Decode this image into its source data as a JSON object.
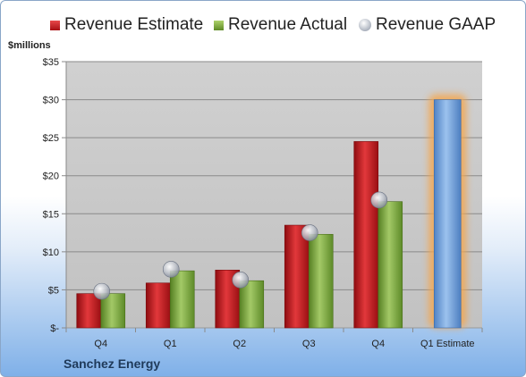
{
  "legend": {
    "estimate": "Revenue Estimate",
    "actual": "Revenue Actual",
    "gaap": "Revenue GAAP"
  },
  "company": "Sanchez Energy",
  "colors": {
    "estimate": "#c1171c",
    "actual": "#77a03a",
    "gaap": "#c0c4cc",
    "forecast": "#6f9fd8",
    "forecast_glow": "#f4a64d",
    "plot_bg": "#c8c8c8"
  },
  "chart_data": {
    "type": "bar",
    "ylabel": "$millions",
    "ylim": [
      0,
      35
    ],
    "yticks": [
      0,
      5,
      10,
      15,
      20,
      25,
      30,
      35
    ],
    "ytick_labels": [
      "$-",
      "$5",
      "$10",
      "$15",
      "$20",
      "$25",
      "$30",
      "$35"
    ],
    "grid": true,
    "legend_position": "top",
    "categories": [
      "Q4",
      "Q1",
      "Q2",
      "Q3",
      "Q4",
      "Q1 Estimate"
    ],
    "series": [
      {
        "name": "Revenue Estimate",
        "kind": "bar",
        "values": [
          4.5,
          5.9,
          7.6,
          13.5,
          24.5,
          null
        ]
      },
      {
        "name": "Revenue Actual",
        "kind": "bar",
        "values": [
          4.5,
          7.5,
          6.2,
          12.3,
          16.6,
          null
        ]
      },
      {
        "name": "Revenue GAAP",
        "kind": "marker",
        "values": [
          4.8,
          7.7,
          6.3,
          12.5,
          16.8,
          null
        ]
      }
    ],
    "forecast": {
      "category": "Q1 Estimate",
      "value": 30.0
    }
  }
}
